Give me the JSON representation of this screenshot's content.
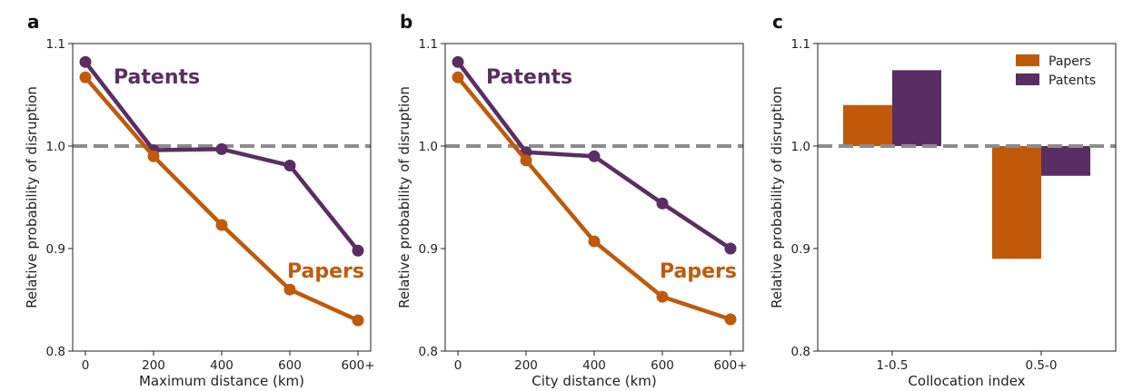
{
  "colors": {
    "papers": "#c05a0a",
    "patents": "#5a2d63",
    "baseline": "#8c8c8c",
    "axis": "#222222"
  },
  "chart_data": [
    {
      "panel": "a",
      "type": "line",
      "categories": [
        "0",
        "200",
        "400",
        "600",
        "600+"
      ],
      "xlabel": "Maximum distance (km)",
      "ylabel": "Relative probability of disruption",
      "ylim": [
        0.8,
        1.1
      ],
      "yticks": [
        "0.8",
        "0.9",
        "1.0",
        "1.1"
      ],
      "reference_line": 1.0,
      "grid": false,
      "series": [
        {
          "name": "Patents",
          "color": "#5a2d63",
          "values": [
            1.082,
            0.996,
            0.997,
            0.981,
            0.898
          ]
        },
        {
          "name": "Papers",
          "color": "#c05a0a",
          "values": [
            1.067,
            0.99,
            0.923,
            0.86,
            0.83
          ]
        }
      ]
    },
    {
      "panel": "b",
      "type": "line",
      "categories": [
        "0",
        "200",
        "400",
        "600",
        "600+"
      ],
      "xlabel": "City distance (km)",
      "ylabel": "Relative probability of disruption",
      "ylim": [
        0.8,
        1.1
      ],
      "yticks": [
        "0.8",
        "0.9",
        "1.0",
        "1.1"
      ],
      "reference_line": 1.0,
      "grid": false,
      "series": [
        {
          "name": "Patents",
          "color": "#5a2d63",
          "values": [
            1.082,
            0.994,
            0.99,
            0.944,
            0.9
          ]
        },
        {
          "name": "Papers",
          "color": "#c05a0a",
          "values": [
            1.067,
            0.986,
            0.907,
            0.853,
            0.831
          ]
        }
      ]
    },
    {
      "panel": "c",
      "type": "bar",
      "categories": [
        "1-0.5",
        "0.5-0"
      ],
      "xlabel": "Collocation index",
      "ylabel": "Relative probability of disruption",
      "ylim": [
        0.8,
        1.1
      ],
      "yticks": [
        "0.8",
        "0.9",
        "1.0",
        "1.1"
      ],
      "reference_line": 1.0,
      "grid": false,
      "legend": {
        "placement": "top-right",
        "entries": [
          "Papers",
          "Patents"
        ]
      },
      "series": [
        {
          "name": "Papers",
          "color": "#c05a0a",
          "values": [
            1.04,
            0.89
          ]
        },
        {
          "name": "Patents",
          "color": "#5a2d63",
          "values": [
            1.074,
            0.971
          ]
        }
      ]
    }
  ]
}
